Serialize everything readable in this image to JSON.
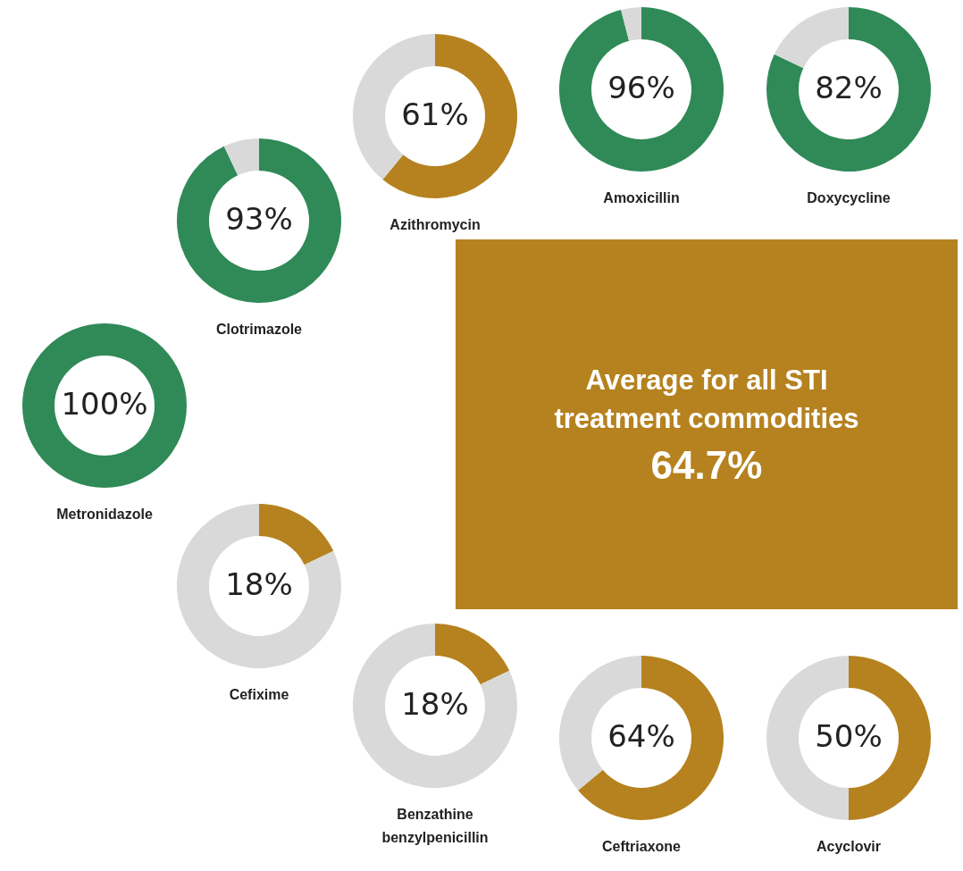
{
  "chart_data": [
    {
      "type": "donut",
      "title": "Metronidazole",
      "categories": [
        null,
        null
      ],
      "values": [
        100,
        0
      ],
      "colors": [
        "#2f8a57",
        "#d9d9d9"
      ],
      "value_labels": [
        "100%",
        null
      ]
    },
    {
      "type": "donut",
      "title": "Clotrimazole",
      "categories": [
        null,
        null
      ],
      "values": [
        93,
        7
      ],
      "colors": [
        "#2f8a57",
        "#d9d9d9"
      ],
      "value_labels": [
        "93%",
        null
      ]
    },
    {
      "type": "donut",
      "title": "Azithromycin",
      "categories": [
        null,
        null
      ],
      "values": [
        61,
        39
      ],
      "colors": [
        "#b5821f",
        "#d9d9d9"
      ],
      "value_labels": [
        "61%",
        null
      ]
    },
    {
      "type": "donut",
      "title": "Amoxicillin",
      "categories": [
        null,
        null
      ],
      "values": [
        96,
        4
      ],
      "colors": [
        "#2f8a57",
        "#d9d9d9"
      ],
      "value_labels": [
        "96%",
        null
      ]
    },
    {
      "type": "donut",
      "title": "Doxycycline",
      "categories": [
        null,
        null
      ],
      "values": [
        82,
        18
      ],
      "colors": [
        "#2f8a57",
        "#d9d9d9"
      ],
      "value_labels": [
        "82%",
        null
      ]
    },
    {
      "type": "donut",
      "title": "Cefixime",
      "categories": [
        null,
        null
      ],
      "values": [
        18,
        82
      ],
      "colors": [
        "#b5821f",
        "#d9d9d9"
      ],
      "value_labels": [
        "18%",
        null
      ]
    },
    {
      "type": "donut",
      "title": "Benzathine benzylpenicillin",
      "categories": [
        null,
        null
      ],
      "values": [
        18,
        82
      ],
      "colors": [
        "#b5821f",
        "#d9d9d9"
      ],
      "value_labels": [
        "18%",
        null
      ]
    },
    {
      "type": "donut",
      "title": "Ceftriaxone",
      "categories": [
        null,
        null
      ],
      "values": [
        64,
        36
      ],
      "colors": [
        "#b5821f",
        "#d9d9d9"
      ],
      "value_labels": [
        "64%",
        null
      ]
    },
    {
      "type": "donut",
      "title": "Acyclovir",
      "categories": [
        null,
        null
      ],
      "values": [
        50,
        50
      ],
      "colors": [
        "#b5821f",
        "#d9d9d9"
      ],
      "value_labels": [
        "50%",
        null
      ]
    },
    {
      "type": "other",
      "title": "Average for all STI treatment commodities",
      "annotations": [
        "64.7%"
      ]
    }
  ]
}
